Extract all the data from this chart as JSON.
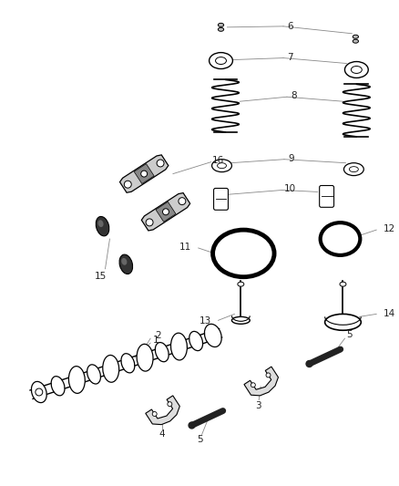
{
  "background_color": "#ffffff",
  "line_color": "#000000",
  "figsize": [
    4.38,
    5.33
  ],
  "dpi": 100,
  "label_fontsize": 7.5,
  "leader_color": "#888888",
  "leader_lw": 0.6
}
